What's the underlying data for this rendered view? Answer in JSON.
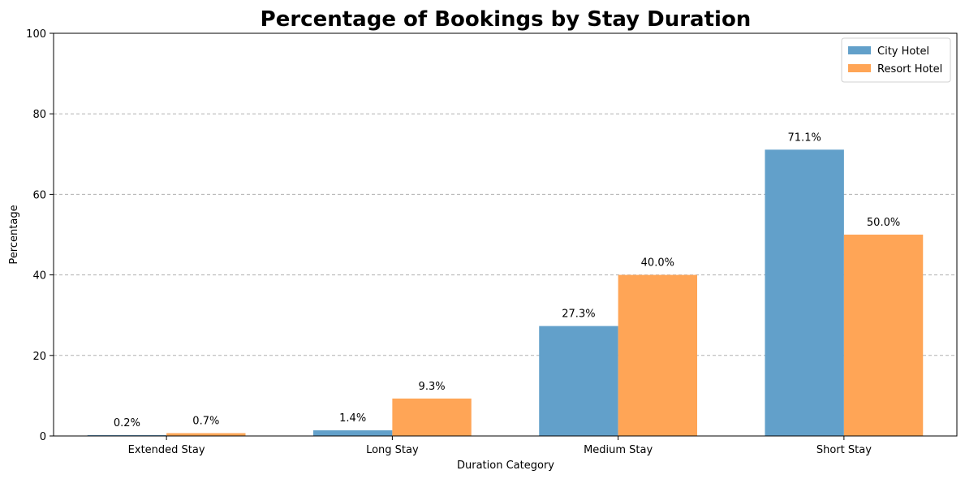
{
  "chart_data": {
    "type": "bar",
    "title": "Percentage of Bookings by Stay Duration",
    "xlabel": "Duration Category",
    "ylabel": "Percentage",
    "categories": [
      "Extended Stay",
      "Long Stay",
      "Medium Stay",
      "Short Stay"
    ],
    "series": [
      {
        "name": "City Hotel",
        "color": "#62a0ca",
        "values": [
          0.2,
          1.4,
          27.3,
          71.1
        ],
        "labels": [
          "0.2%",
          "1.4%",
          "27.3%",
          "71.1%"
        ]
      },
      {
        "name": "Resort Hotel",
        "color": "#ffa556",
        "values": [
          0.7,
          9.3,
          40.0,
          50.0
        ],
        "labels": [
          "0.7%",
          "9.3%",
          "40.0%",
          "50.0%"
        ]
      }
    ],
    "ylim": [
      0,
      100
    ],
    "yticks": [
      0,
      20,
      40,
      60,
      80,
      100
    ],
    "grid": "y-dashed",
    "legend_position": "top-right"
  }
}
